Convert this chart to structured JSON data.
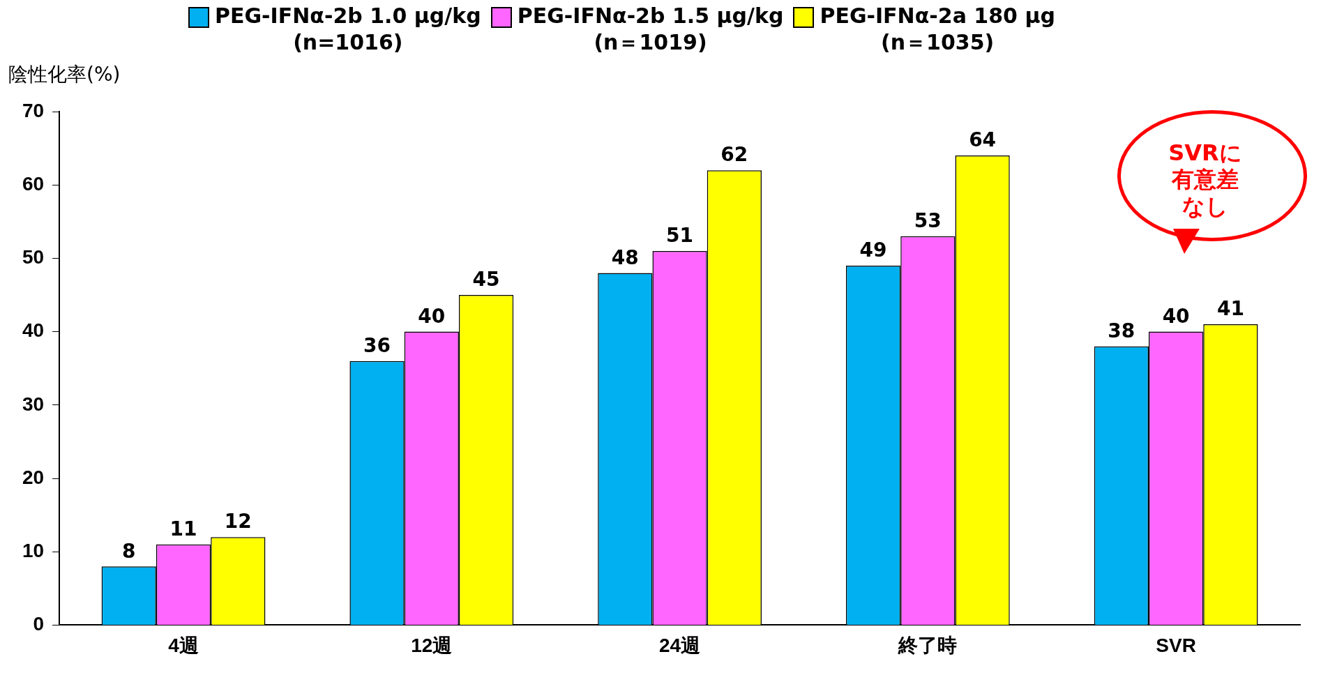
{
  "chart_data": {
    "type": "bar",
    "ylabel": "陰性化率(%)",
    "categories": [
      "4週",
      "12週",
      "24週",
      "終了時",
      "SVR"
    ],
    "series": [
      {
        "name": "PEG-IFNα-2b 1.0 μg/kg\n(n=1016)",
        "color": "#00b0f0",
        "values": [
          8,
          36,
          48,
          49,
          38
        ]
      },
      {
        "name": "PEG-IFNα-2b 1.5 μg/kg\n(n＝1019)",
        "color": "#ff66ff",
        "values": [
          11,
          40,
          51,
          53,
          40
        ]
      },
      {
        "name": "PEG-IFNα-2a 180 μg\n(n＝1035)",
        "color": "#ffff00",
        "values": [
          12,
          45,
          62,
          64,
          41
        ]
      }
    ],
    "ylim": [
      0,
      70
    ],
    "yticks": [
      0,
      10,
      20,
      30,
      40,
      50,
      60,
      70
    ],
    "grid": false,
    "legend": "top",
    "data_labels": true,
    "annotations": [
      "SVRに有意差なし"
    ]
  }
}
